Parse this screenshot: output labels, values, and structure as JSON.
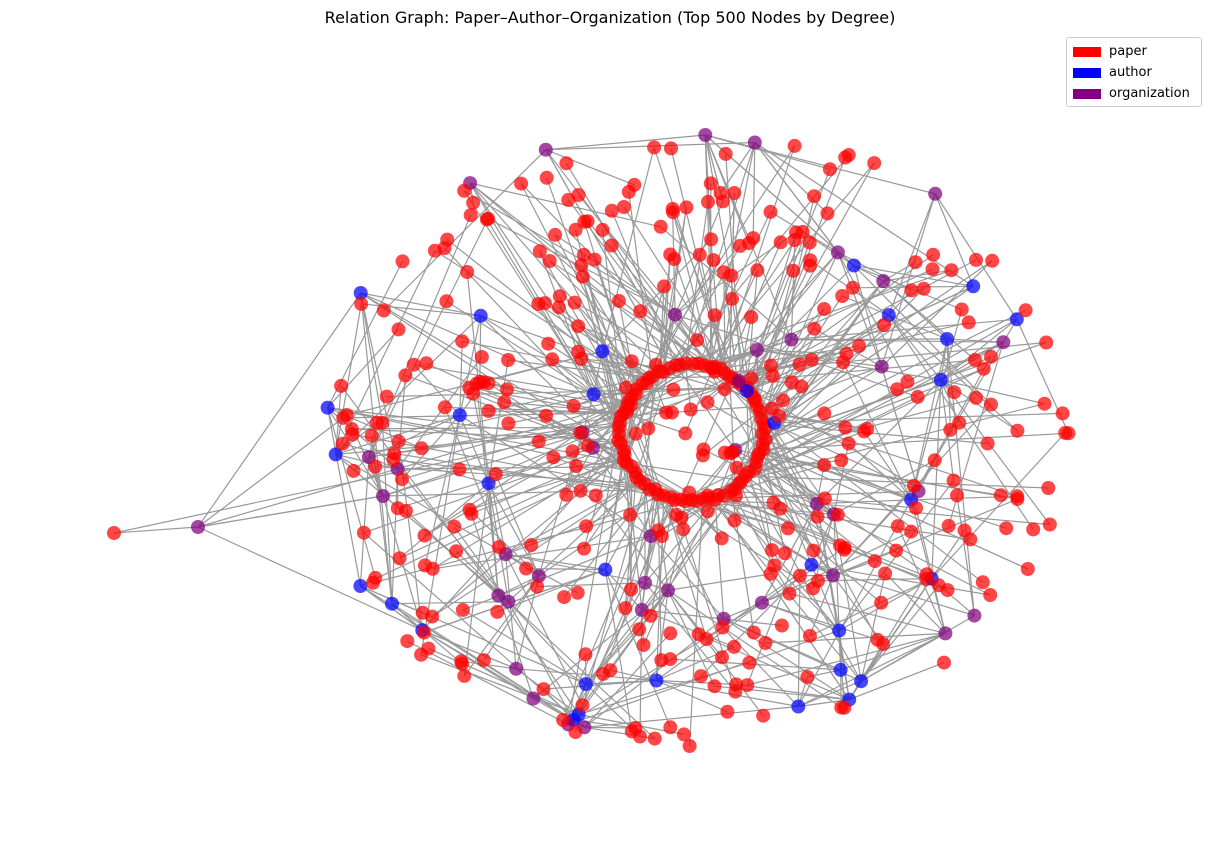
{
  "title": "Relation Graph: Paper–Author–Organization (Top 500 Nodes by Degree)",
  "legend": [
    {
      "label": "paper",
      "color": "#ff0000"
    },
    {
      "label": "author",
      "color": "#0000ff"
    },
    {
      "label": "organization",
      "color": "#800080"
    }
  ],
  "edge_color": "#999999",
  "node_counts": {
    "paper": 430,
    "author": 32,
    "organization": 38
  }
}
